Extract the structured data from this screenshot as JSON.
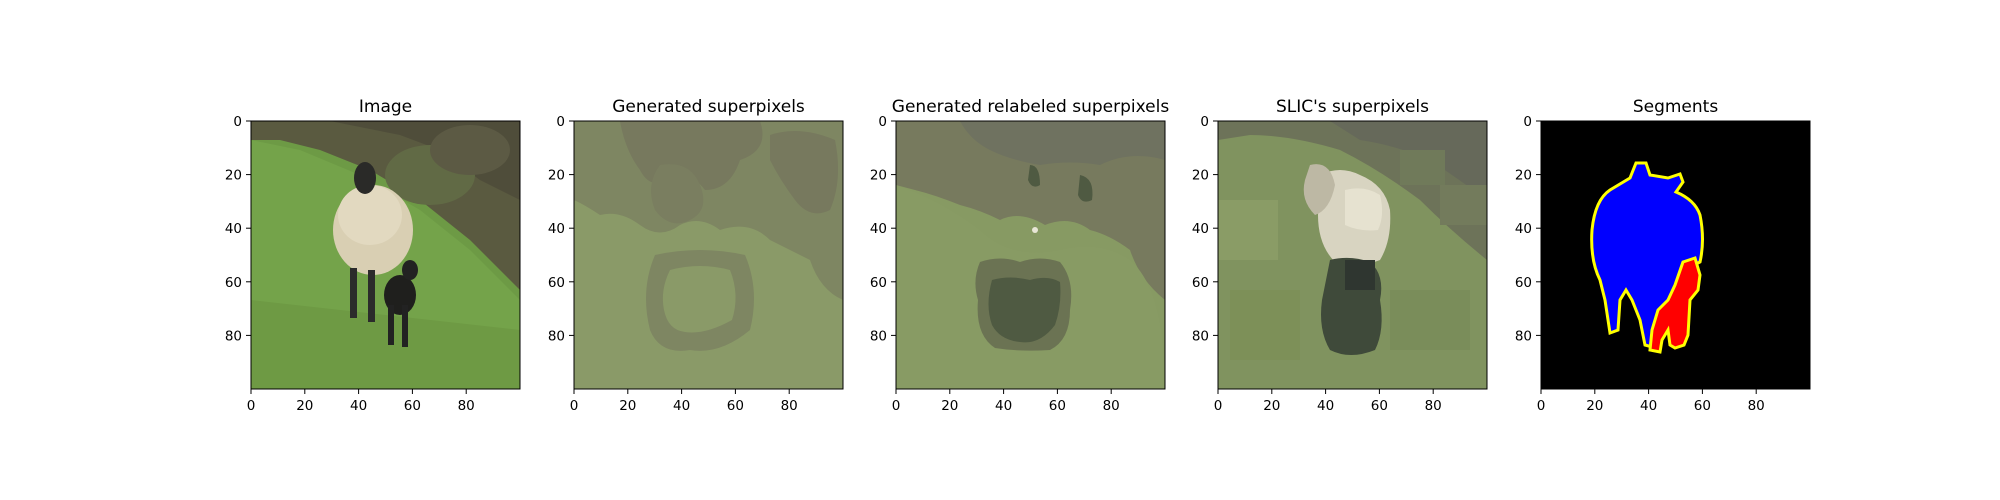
{
  "figure": {
    "background": "#ffffff"
  },
  "panels": [
    {
      "title": "Image",
      "x_ticks": [
        "0",
        "20",
        "40",
        "60",
        "80"
      ],
      "y_ticks": [
        "0",
        "20",
        "40",
        "60",
        "80"
      ],
      "content": "photo: black-faced sheep with lamb on grassy hillside"
    },
    {
      "title": "Generated superpixels",
      "x_ticks": [
        "0",
        "20",
        "40",
        "60",
        "80"
      ],
      "y_ticks": [
        "0",
        "20",
        "40",
        "60",
        "80"
      ],
      "content": "superpixel mean-color map",
      "colors": {
        "base": "#8a9a68",
        "dark": "#77795e",
        "mid": "#7e8662"
      }
    },
    {
      "title": "Generated relabeled superpixels",
      "x_ticks": [
        "0",
        "20",
        "40",
        "60",
        "80"
      ],
      "y_ticks": [
        "0",
        "20",
        "40",
        "60",
        "80"
      ],
      "content": "relabeled superpixel mean-color map",
      "colors": {
        "base": "#879a63",
        "dark": "#4f5a42",
        "mid": "#777a5e",
        "sky": "#6f7260"
      }
    },
    {
      "title": "SLIC's superpixels",
      "x_ticks": [
        "0",
        "20",
        "40",
        "60",
        "80"
      ],
      "y_ticks": [
        "0",
        "20",
        "40",
        "60",
        "80"
      ],
      "content": "SLIC superpixel mean-color map",
      "colors": {
        "base": "#80935f",
        "wool": "#d8d4c1",
        "dark": "#3f4a3a"
      }
    },
    {
      "title": "Segments",
      "x_ticks": [
        "0",
        "20",
        "40",
        "60",
        "80"
      ],
      "y_ticks": [
        "0",
        "20",
        "40",
        "60",
        "80"
      ],
      "content": "segmentation mask",
      "colors": {
        "background": "#000000",
        "sheep": "#0000ff",
        "lamb": "#ff0000",
        "boundary": "#ffff00"
      }
    }
  ],
  "chart_data": [
    {
      "type": "heatmap",
      "title": "Image",
      "xlim": [
        0,
        100
      ],
      "ylim": [
        100,
        0
      ],
      "x_ticks": [
        0,
        20,
        40,
        60,
        80
      ],
      "y_ticks": [
        0,
        20,
        40,
        60,
        80
      ]
    },
    {
      "type": "heatmap",
      "title": "Generated superpixels",
      "xlim": [
        0,
        100
      ],
      "ylim": [
        100,
        0
      ],
      "x_ticks": [
        0,
        20,
        40,
        60,
        80
      ],
      "y_ticks": [
        0,
        20,
        40,
        60,
        80
      ]
    },
    {
      "type": "heatmap",
      "title": "Generated relabeled superpixels",
      "xlim": [
        0,
        100
      ],
      "ylim": [
        100,
        0
      ],
      "x_ticks": [
        0,
        20,
        40,
        60,
        80
      ],
      "y_ticks": [
        0,
        20,
        40,
        60,
        80
      ]
    },
    {
      "type": "heatmap",
      "title": "SLIC's superpixels",
      "xlim": [
        0,
        100
      ],
      "ylim": [
        100,
        0
      ],
      "x_ticks": [
        0,
        20,
        40,
        60,
        80
      ],
      "y_ticks": [
        0,
        20,
        40,
        60,
        80
      ]
    },
    {
      "type": "heatmap",
      "title": "Segments",
      "xlim": [
        0,
        100
      ],
      "ylim": [
        100,
        0
      ],
      "x_ticks": [
        0,
        20,
        40,
        60,
        80
      ],
      "y_ticks": [
        0,
        20,
        40,
        60,
        80
      ]
    }
  ]
}
